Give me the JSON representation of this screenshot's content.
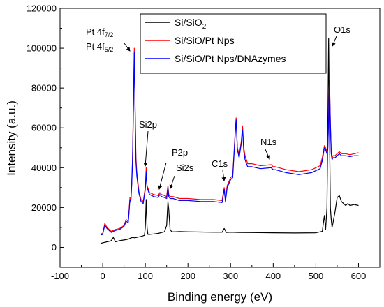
{
  "chart_data": {
    "type": "line",
    "xlabel": "Binding energy (eV)",
    "ylabel": "Intensity (a.u.)",
    "xlim": [
      -100,
      650
    ],
    "ylim": [
      -10000,
      120000
    ],
    "xticks": [
      -100,
      0,
      100,
      200,
      300,
      400,
      500,
      600
    ],
    "yticks": [
      0,
      20000,
      40000,
      60000,
      80000,
      100000,
      120000
    ],
    "grid": false,
    "legend_position": "top-right",
    "legend": [
      {
        "main": "Si/SiO",
        "sub": "2"
      },
      {
        "main": "Si/SiO/Pt Nps",
        "sub": ""
      },
      {
        "main": "Si/SiO/Pt Nps/DNAzymes",
        "sub": ""
      }
    ],
    "annotations": [
      {
        "main": "Pt 4f",
        "sub": "7/2",
        "x": 70,
        "y": 98000
      },
      {
        "main": "Pt 4f",
        "sub": "5/2",
        "x": 70,
        "y": 98000
      },
      {
        "main": "Si2p",
        "sub": "",
        "x": 100,
        "y": 41000
      },
      {
        "main": "P2p",
        "sub": "",
        "x": 133,
        "y": 29000
      },
      {
        "main": "Si2s",
        "sub": "",
        "x": 152,
        "y": 29500
      },
      {
        "main": "C1s",
        "sub": "",
        "x": 285,
        "y": 33000
      },
      {
        "main": "N1s",
        "sub": "",
        "x": 400,
        "y": 42000
      },
      {
        "main": "O1s",
        "sub": "",
        "x": 532,
        "y": 108000
      }
    ],
    "series": [
      {
        "name": "Si/SiO2",
        "color": "#000000",
        "x": [
          -5,
          0,
          10,
          20,
          25,
          30,
          40,
          50,
          60,
          65,
          70,
          75,
          80,
          90,
          98,
          100,
          102,
          104,
          106,
          110,
          120,
          130,
          145,
          150,
          153,
          155,
          158,
          162,
          170,
          180,
          200,
          230,
          260,
          280,
          285,
          290,
          300,
          320,
          350,
          400,
          450,
          500,
          515,
          520,
          523,
          526,
          528,
          530,
          532,
          534,
          536,
          538,
          540,
          545,
          550,
          555,
          560,
          565,
          570,
          575,
          580,
          590,
          600
        ],
        "y": [
          2000,
          2300,
          2800,
          3300,
          5000,
          2800,
          3400,
          3700,
          4100,
          4600,
          5000,
          4800,
          5000,
          5500,
          6000,
          10000,
          24000,
          10000,
          6500,
          6500,
          6700,
          7000,
          7800,
          11000,
          23000,
          19000,
          9000,
          7800,
          7800,
          7900,
          7800,
          7700,
          7600,
          7600,
          9500,
          7500,
          7600,
          7500,
          7400,
          7300,
          7200,
          7300,
          8000,
          16000,
          9000,
          20000,
          60000,
          105000,
          60000,
          20000,
          14000,
          10000,
          12000,
          18000,
          25000,
          26000,
          23000,
          22000,
          21000,
          22000,
          21000,
          21500,
          21000
        ]
      },
      {
        "name": "Si/SiO/Pt Nps",
        "color": "#ff0000",
        "x": [
          -5,
          -2,
          0,
          2,
          5,
          10,
          20,
          30,
          40,
          50,
          55,
          60,
          62,
          64,
          66,
          68,
          70,
          72,
          74,
          76,
          78,
          80,
          85,
          90,
          95,
          100,
          102,
          104,
          110,
          115,
          120,
          130,
          134,
          138,
          145,
          150,
          153,
          155,
          158,
          165,
          180,
          200,
          230,
          260,
          280,
          285,
          288,
          292,
          300,
          305,
          310,
          313,
          316,
          320,
          325,
          328,
          331,
          334,
          340,
          350,
          370,
          395,
          400,
          405,
          430,
          460,
          490,
          510,
          515,
          520,
          523,
          526,
          528,
          530,
          532,
          534,
          536,
          538,
          540,
          545,
          550,
          555,
          560,
          570,
          580,
          590,
          600
        ],
        "y": [
          7000,
          6800,
          7000,
          9000,
          12000,
          10000,
          8000,
          9000,
          9500,
          11000,
          14000,
          13000,
          19000,
          25000,
          24000,
          32000,
          45000,
          70000,
          100000,
          70000,
          45000,
          38000,
          28000,
          24000,
          23000,
          30000,
          40000,
          31000,
          27500,
          27000,
          26500,
          26000,
          27500,
          26500,
          26000,
          25500,
          31000,
          26500,
          25500,
          25500,
          24500,
          24500,
          24000,
          24000,
          23500,
          30000,
          24000,
          31000,
          35000,
          36000,
          55000,
          65000,
          50000,
          46000,
          53000,
          61000,
          50000,
          46000,
          42000,
          42000,
          41000,
          41500,
          40500,
          40500,
          39000,
          38000,
          39000,
          41000,
          45000,
          51000,
          50000,
          48000,
          50000,
          66000,
          85000,
          63000,
          48000,
          45000,
          46000,
          46000,
          47000,
          48000,
          47000,
          47000,
          46500,
          47000,
          47500
        ]
      },
      {
        "name": "Si/SiO/Pt Nps/DNAzymes",
        "color": "#0000ff",
        "x": [
          -5,
          -2,
          0,
          2,
          5,
          10,
          20,
          30,
          40,
          50,
          55,
          60,
          62,
          64,
          66,
          68,
          70,
          72,
          74,
          76,
          78,
          80,
          85,
          90,
          95,
          100,
          102,
          104,
          110,
          115,
          120,
          130,
          134,
          138,
          145,
          150,
          153,
          155,
          158,
          165,
          180,
          200,
          230,
          260,
          280,
          285,
          288,
          292,
          300,
          305,
          310,
          313,
          316,
          320,
          325,
          328,
          331,
          334,
          340,
          350,
          370,
          395,
          400,
          405,
          430,
          460,
          490,
          510,
          515,
          520,
          523,
          526,
          528,
          530,
          532,
          534,
          536,
          538,
          540,
          545,
          550,
          555,
          560,
          570,
          580,
          590,
          600
        ],
        "y": [
          6500,
          6300,
          6500,
          8500,
          11000,
          9500,
          7500,
          8500,
          9000,
          10500,
          13000,
          12500,
          18000,
          24000,
          23000,
          31000,
          43000,
          68000,
          98000,
          68000,
          43000,
          36000,
          27000,
          23000,
          22000,
          29000,
          38000,
          30000,
          26500,
          26000,
          25500,
          25000,
          26500,
          25500,
          25000,
          24500,
          30000,
          25500,
          24500,
          24500,
          23500,
          23500,
          23000,
          23000,
          22500,
          29000,
          23000,
          30000,
          34000,
          35000,
          54000,
          64000,
          49000,
          45000,
          52000,
          59000,
          48000,
          44000,
          40500,
          40500,
          39500,
          40000,
          39000,
          39000,
          37500,
          36500,
          37500,
          39500,
          43500,
          50000,
          49000,
          47000,
          49000,
          65000,
          84000,
          62000,
          47000,
          44000,
          45000,
          45000,
          46000,
          47000,
          46000,
          46000,
          45500,
          46000,
          46000
        ]
      }
    ]
  }
}
